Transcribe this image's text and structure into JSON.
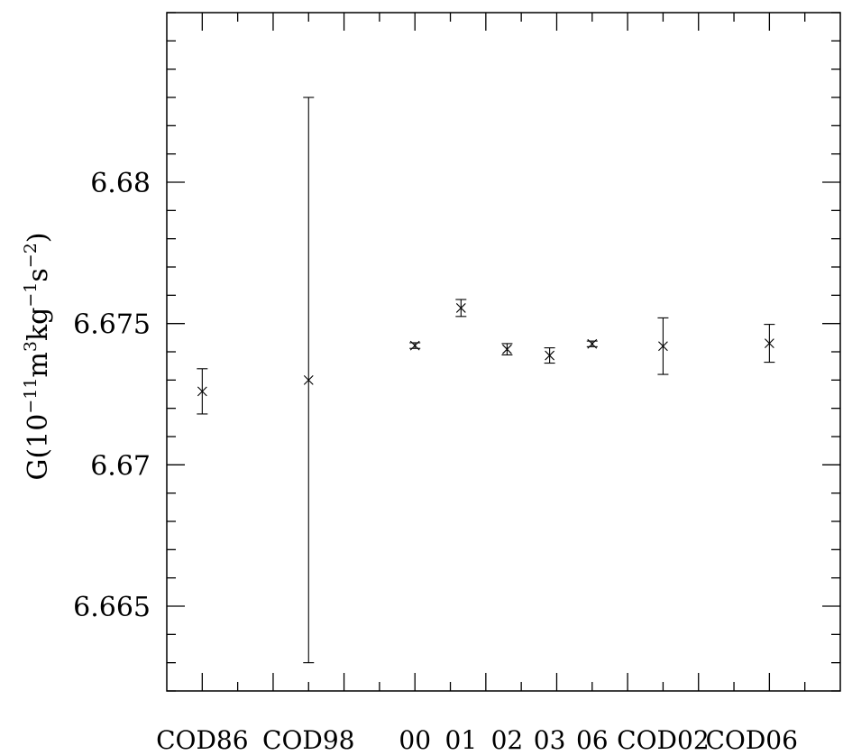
{
  "chart_data": {
    "type": "scatter",
    "ylabel": {
      "base": "G(10",
      "exp1": "−11",
      "unit1": "m",
      "exp2": "3",
      "unit2": "kg",
      "exp3": "−1",
      "unit3": "s",
      "exp4": "−2",
      "close": ")"
    },
    "ylim": [
      6.662,
      6.686
    ],
    "y_ticks": [
      {
        "value": 6.665,
        "label": "6.665"
      },
      {
        "value": 6.67,
        "label": "6.67"
      },
      {
        "value": 6.675,
        "label": "6.675"
      },
      {
        "value": 6.68,
        "label": "6.68"
      }
    ],
    "y_minor_step": 0.001,
    "xlim": [
      0,
      19
    ],
    "x_tick_positions": [
      1,
      3,
      5,
      7,
      9,
      11,
      13,
      15,
      17
    ],
    "x_minor_positions": [
      2,
      4,
      6,
      8,
      10,
      12,
      14,
      16,
      18
    ],
    "categories": [
      {
        "label": "COD86",
        "x": 1.0
      },
      {
        "label": "COD98",
        "x": 4.0
      },
      {
        "label": "00",
        "x": 7.0
      },
      {
        "label": "01",
        "x": 8.3
      },
      {
        "label": "02",
        "x": 9.6
      },
      {
        "label": "03",
        "x": 10.8
      },
      {
        "label": "06",
        "x": 12.0
      },
      {
        "label": "COD02",
        "x": 14.0
      },
      {
        "label": "COD06",
        "x": 16.5
      }
    ],
    "points": [
      {
        "x": 1.0,
        "y": 6.6726,
        "err": 0.0008
      },
      {
        "x": 4.0,
        "y": 6.673,
        "err": 0.01
      },
      {
        "x": 7.0,
        "y": 6.67422,
        "err": 0.0001
      },
      {
        "x": 8.3,
        "y": 6.67555,
        "err": 0.0003
      },
      {
        "x": 9.6,
        "y": 6.67409,
        "err": 0.0002
      },
      {
        "x": 10.8,
        "y": 6.67387,
        "err": 0.00027
      },
      {
        "x": 12.0,
        "y": 6.67428,
        "err": 0.0001
      },
      {
        "x": 14.0,
        "y": 6.6742,
        "err": 0.001
      },
      {
        "x": 17.0,
        "y": 6.6743,
        "err": 0.00067
      }
    ],
    "grid": false
  }
}
